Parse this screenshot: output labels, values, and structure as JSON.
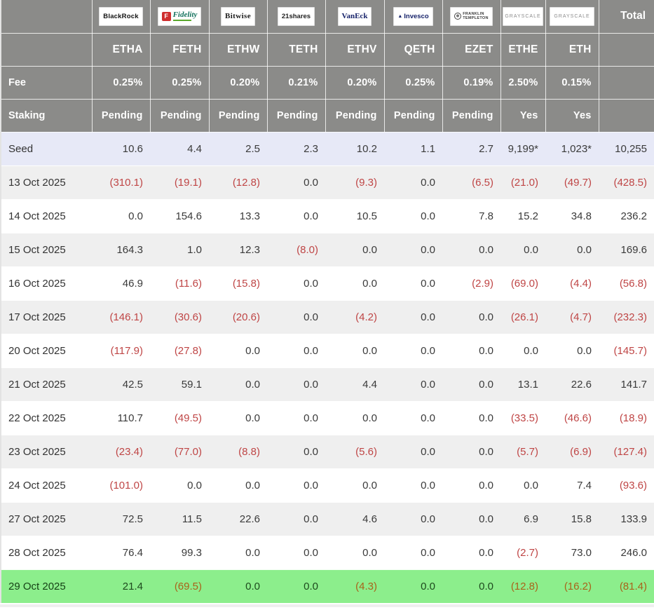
{
  "colors": {
    "header_bg": "#8b8b89",
    "seed_bg": "#e7e9f7",
    "row_alt": "#efefef",
    "highlight_bg": "#8cee8c",
    "negative": "#bf4545",
    "highlight_negative": "#a9631a",
    "highlight_text": "#1d4a1d",
    "body_text": "#3a3a3a"
  },
  "labels": {
    "fee": "Fee",
    "staking": "Staking",
    "total": "Total"
  },
  "chart_data": {
    "type": "table",
    "title": "Ethereum ETF daily flow table",
    "issuers": [
      {
        "name": "BlackRock"
      },
      {
        "name": "Fidelity",
        "icon_letter": "F"
      },
      {
        "name": "Bitwise"
      },
      {
        "name": "21shares"
      },
      {
        "name": "VanEck"
      },
      {
        "name": "Invesco"
      },
      {
        "line1": "FRANKLIN",
        "line2": "TEMPLETON"
      },
      {
        "name": "GRAYSCALE"
      },
      {
        "name": "GRAYSCALE"
      }
    ],
    "tickers": [
      "ETHA",
      "FETH",
      "ETHW",
      "TETH",
      "ETHV",
      "QETH",
      "EZET",
      "ETHE",
      "ETH"
    ],
    "fees": [
      "0.25%",
      "0.25%",
      "0.20%",
      "0.21%",
      "0.20%",
      "0.25%",
      "0.19%",
      "2.50%",
      "0.15%"
    ],
    "staking": [
      "Pending",
      "Pending",
      "Pending",
      "Pending",
      "Pending",
      "Pending",
      "Pending",
      "Yes",
      "Yes"
    ],
    "columns": [
      "ETHA",
      "FETH",
      "ETHW",
      "TETH",
      "ETHV",
      "QETH",
      "EZET",
      "ETHE",
      "ETH",
      "Total"
    ],
    "rows": [
      {
        "label": "Seed",
        "seed": true,
        "values": [
          "10.6",
          "4.4",
          "2.5",
          "2.3",
          "10.2",
          "1.1",
          "2.7",
          "9,199*",
          "1,023*",
          "10,255"
        ]
      },
      {
        "label": "13 Oct 2025",
        "values": [
          "(310.1)",
          "(19.1)",
          "(12.8)",
          "0.0",
          "(9.3)",
          "0.0",
          "(6.5)",
          "(21.0)",
          "(49.7)",
          "(428.5)"
        ]
      },
      {
        "label": "14 Oct 2025",
        "values": [
          "0.0",
          "154.6",
          "13.3",
          "0.0",
          "10.5",
          "0.0",
          "7.8",
          "15.2",
          "34.8",
          "236.2"
        ]
      },
      {
        "label": "15 Oct 2025",
        "values": [
          "164.3",
          "1.0",
          "12.3",
          "(8.0)",
          "0.0",
          "0.0",
          "0.0",
          "0.0",
          "0.0",
          "169.6"
        ]
      },
      {
        "label": "16 Oct 2025",
        "values": [
          "46.9",
          "(11.6)",
          "(15.8)",
          "0.0",
          "0.0",
          "0.0",
          "(2.9)",
          "(69.0)",
          "(4.4)",
          "(56.8)"
        ]
      },
      {
        "label": "17 Oct 2025",
        "values": [
          "(146.1)",
          "(30.6)",
          "(20.6)",
          "0.0",
          "(4.2)",
          "0.0",
          "0.0",
          "(26.1)",
          "(4.7)",
          "(232.3)"
        ]
      },
      {
        "label": "20 Oct 2025",
        "values": [
          "(117.9)",
          "(27.8)",
          "0.0",
          "0.0",
          "0.0",
          "0.0",
          "0.0",
          "0.0",
          "0.0",
          "(145.7)"
        ]
      },
      {
        "label": "21 Oct 2025",
        "values": [
          "42.5",
          "59.1",
          "0.0",
          "0.0",
          "4.4",
          "0.0",
          "0.0",
          "13.1",
          "22.6",
          "141.7"
        ]
      },
      {
        "label": "22 Oct 2025",
        "values": [
          "110.7",
          "(49.5)",
          "0.0",
          "0.0",
          "0.0",
          "0.0",
          "0.0",
          "(33.5)",
          "(46.6)",
          "(18.9)"
        ]
      },
      {
        "label": "23 Oct 2025",
        "values": [
          "(23.4)",
          "(77.0)",
          "(8.8)",
          "0.0",
          "(5.6)",
          "0.0",
          "0.0",
          "(5.7)",
          "(6.9)",
          "(127.4)"
        ]
      },
      {
        "label": "24 Oct 2025",
        "values": [
          "(101.0)",
          "0.0",
          "0.0",
          "0.0",
          "0.0",
          "0.0",
          "0.0",
          "0.0",
          "7.4",
          "(93.6)"
        ]
      },
      {
        "label": "27 Oct 2025",
        "values": [
          "72.5",
          "11.5",
          "22.6",
          "0.0",
          "4.6",
          "0.0",
          "0.0",
          "6.9",
          "15.8",
          "133.9"
        ]
      },
      {
        "label": "28 Oct 2025",
        "values": [
          "76.4",
          "99.3",
          "0.0",
          "0.0",
          "0.0",
          "0.0",
          "0.0",
          "(2.7)",
          "73.0",
          "246.0"
        ]
      },
      {
        "label": "29 Oct 2025",
        "highlight": true,
        "values": [
          "21.4",
          "(69.5)",
          "0.0",
          "0.0",
          "(4.3)",
          "0.0",
          "0.0",
          "(12.8)",
          "(16.2)",
          "(81.4)"
        ]
      }
    ]
  }
}
